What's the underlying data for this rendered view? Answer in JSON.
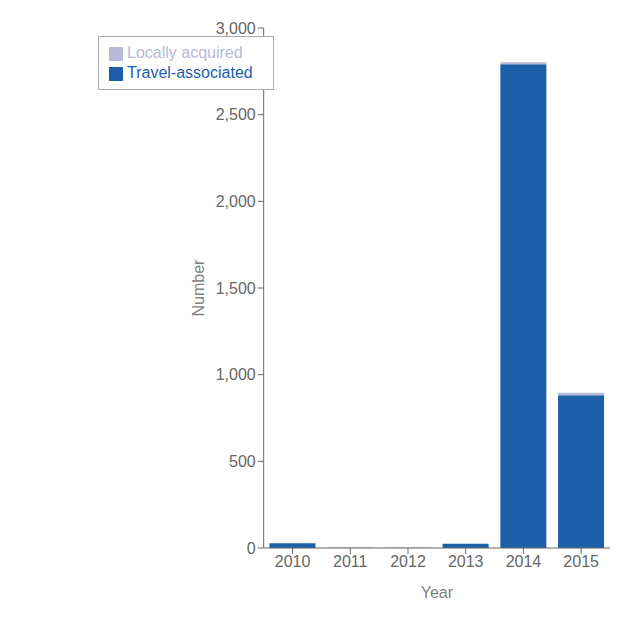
{
  "chart_data": {
    "type": "bar",
    "stacked": true,
    "categories": [
      "2010",
      "2011",
      "2012",
      "2013",
      "2014",
      "2015"
    ],
    "series": [
      {
        "name": "Travel-associated",
        "color": "#1a5fa8",
        "values": [
          28,
          2,
          2,
          24,
          2791,
          881
        ]
      },
      {
        "name": "Locally acquired",
        "color": "#b8b8d8",
        "values": [
          0,
          0,
          0,
          0,
          11,
          14
        ]
      }
    ],
    "xlabel": "Year",
    "ylabel": "Number",
    "ylim": [
      0,
      3000
    ],
    "yticks": [
      0,
      500,
      {
        "value": 1000,
        "label": "1,000"
      },
      {
        "value": 1500,
        "label": "1,500"
      },
      {
        "value": 2000,
        "label": "2,000"
      },
      {
        "value": 2500,
        "label": "2,500"
      },
      {
        "value": 3000,
        "label": "3,000"
      }
    ],
    "grid": false,
    "legend": "upper left"
  }
}
